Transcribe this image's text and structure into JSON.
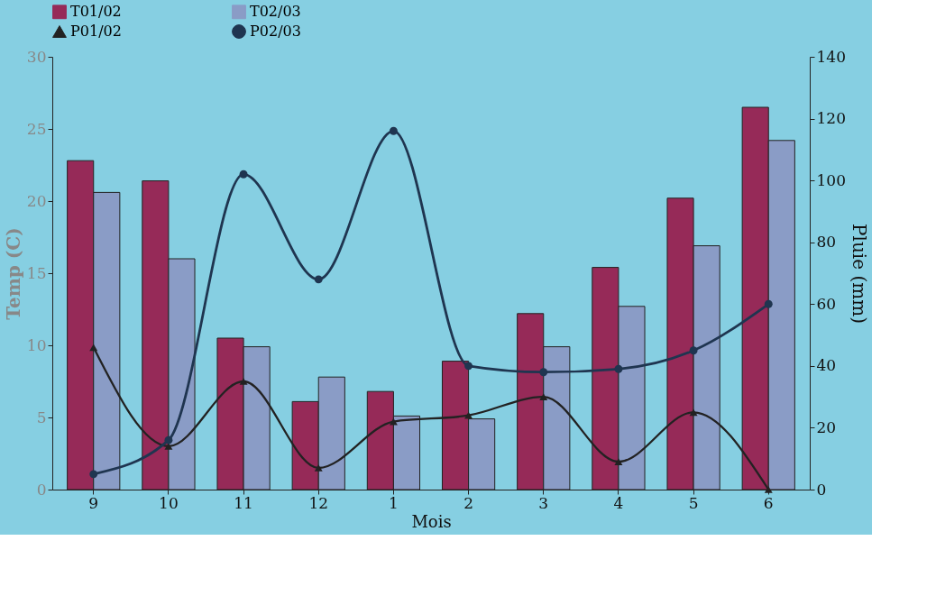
{
  "chart_data": {
    "type": "bar",
    "xlabel": "Mois",
    "ylabel": "Temp (C)",
    "y2label": "Pluie (mm)",
    "categories": [
      "9",
      "10",
      "11",
      "12",
      "1",
      "2",
      "3",
      "4",
      "5",
      "6"
    ],
    "series": [
      {
        "name": "T01/02",
        "color": "#962a58",
        "values": [
          22.8,
          21.4,
          10.5,
          6.1,
          6.8,
          8.9,
          12.2,
          15.4,
          20.2,
          26.5
        ]
      },
      {
        "name": "T02/03",
        "color": "#8a9cc6",
        "values": [
          20.6,
          16.0,
          9.9,
          7.8,
          5.1,
          4.9,
          9.9,
          12.7,
          16.9,
          24.2
        ]
      },
      {
        "name": "P01/02",
        "type": "line",
        "axis": "y2",
        "marker": "triangle",
        "color": "#222222",
        "values": [
          46,
          14,
          35,
          7,
          22,
          24,
          30,
          9,
          25,
          0
        ]
      },
      {
        "name": "P02/03",
        "type": "line",
        "axis": "y2",
        "marker": "circle",
        "color": "#1f3550",
        "values": [
          5,
          16,
          102,
          68,
          116,
          40,
          38,
          39,
          45,
          60
        ]
      }
    ],
    "ylim": [
      0,
      30
    ],
    "yticks": [
      0,
      5,
      10,
      15,
      20,
      25,
      30
    ],
    "y2lim": [
      0,
      140
    ],
    "y2ticks": [
      0,
      20,
      40,
      60,
      80,
      100,
      120,
      140
    ],
    "grid": false,
    "legend": "top",
    "line_style": "solid"
  }
}
